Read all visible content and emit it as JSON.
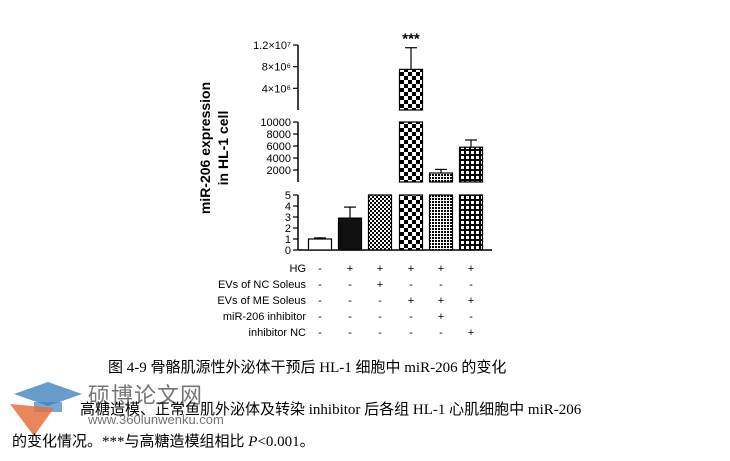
{
  "chart_data": {
    "type": "bar",
    "ylabel_line1": "miR-206 expression",
    "ylabel_line2": "in HL-1 cell",
    "axis_segments": [
      {
        "range": [
          0,
          5
        ],
        "ticks": [
          "0",
          "1",
          "2",
          "3",
          "4",
          "5"
        ]
      },
      {
        "range": [
          0,
          10000
        ],
        "ticks": [
          "2000",
          "4000",
          "6000",
          "8000",
          "10000"
        ]
      },
      {
        "range": [
          0,
          12000000
        ],
        "ticks": [
          "4×10⁶",
          "8×10⁶",
          "1.2×10⁷"
        ]
      }
    ],
    "series": [
      {
        "values": [
          1,
          2.9,
          5,
          7500000,
          1500,
          5800
        ],
        "errors": [
          0.1,
          1.0,
          0,
          4000000,
          600,
          1200
        ]
      }
    ],
    "significance": "***",
    "significance_bar_index": 3,
    "conditions": [
      {
        "label": "HG",
        "marks": [
          "-",
          "+",
          "+",
          "+",
          "+",
          "+"
        ]
      },
      {
        "label": "EVs of NC Soleus",
        "marks": [
          "-",
          "-",
          "+",
          "-",
          "-",
          "-"
        ]
      },
      {
        "label": "EVs of ME Soleus",
        "marks": [
          "-",
          "-",
          "-",
          "+",
          "+",
          "+"
        ]
      },
      {
        "label": "miR-206 inhibitor",
        "marks": [
          "-",
          "-",
          "-",
          "-",
          "+",
          "-"
        ]
      },
      {
        "label": "inhibitor NC",
        "marks": [
          "-",
          "-",
          "-",
          "-",
          "-",
          "+"
        ]
      }
    ],
    "bar_styles": [
      "white",
      "black",
      "checker-fine",
      "checker-large",
      "dots",
      "grid"
    ]
  },
  "caption": "图 4-9 骨骼肌源性外泌体干预后 HL-1 细胞中 miR-206 的变化",
  "description_line1": "高糖造模、正常鱼肌外泌体及转染 inhibitor 后各组 HL-1 心肌细胞中 miR-206",
  "description_line2_a": "的变化情况。***与高糖造模组相比 ",
  "description_line2_p": "P",
  "description_line2_b": "<0.001。",
  "watermark": {
    "title": "硕博论文网",
    "url": "www.360lunwenku.com"
  }
}
